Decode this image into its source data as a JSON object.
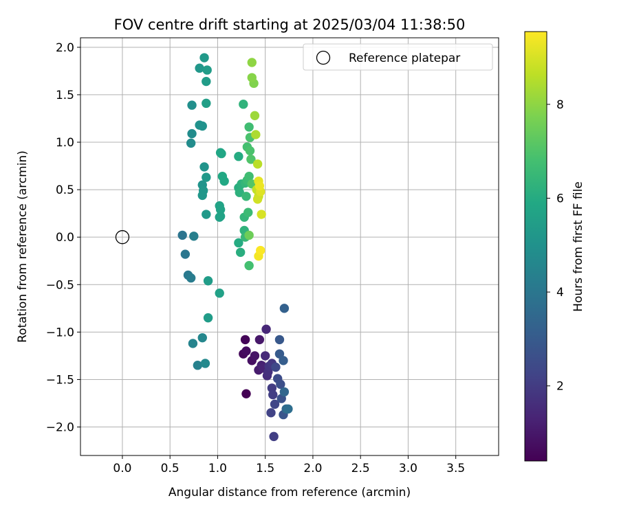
{
  "chart_data": {
    "type": "scatter",
    "title": "FOV centre drift starting at 2025/03/04 11:38:50",
    "xlabel": "Angular distance from reference (arcmin)",
    "ylabel": "Rotation from reference (arcmin)",
    "xlim": [
      -0.44,
      3.95
    ],
    "ylim": [
      -2.3,
      2.1
    ],
    "xticks": [
      0.0,
      0.5,
      1.0,
      1.5,
      2.0,
      2.5,
      3.0,
      3.5
    ],
    "xtick_labels": [
      "0.0",
      "0.5",
      "1.0",
      "1.5",
      "2.0",
      "2.5",
      "3.0",
      "3.5"
    ],
    "yticks": [
      2.0,
      1.5,
      1.0,
      0.5,
      0.0,
      -0.5,
      -1.0,
      -1.5,
      -2.0
    ],
    "ytick_labels": [
      "2.0",
      "1.5",
      "1.0",
      "0.5",
      "0.0",
      "−0.5",
      "−1.0",
      "−1.5",
      "−2.0"
    ],
    "grid": true,
    "legend": {
      "position": "top-right",
      "entries": [
        {
          "label": "Reference platepar",
          "marker": "open-circle",
          "color": "#000000"
        }
      ]
    },
    "reference_point": {
      "x": 0.0,
      "y": 0.0
    },
    "colorbar": {
      "label": "Hours from first FF file",
      "colormap": "viridis",
      "range": [
        0.4,
        9.55
      ],
      "ticks": [
        2,
        4,
        6,
        8
      ],
      "tick_labels": [
        "2",
        "4",
        "6",
        "8"
      ]
    },
    "series": [
      {
        "values": [
          {
            "x": 1.3,
            "y": -1.65,
            "c": 0.4
          },
          {
            "x": 1.29,
            "y": -1.08,
            "c": 0.5
          },
          {
            "x": 1.27,
            "y": -1.23,
            "c": 0.6
          },
          {
            "x": 1.3,
            "y": -1.2,
            "c": 0.7
          },
          {
            "x": 1.36,
            "y": -1.3,
            "c": 0.8
          },
          {
            "x": 1.39,
            "y": -1.25,
            "c": 0.9
          },
          {
            "x": 1.44,
            "y": -1.08,
            "c": 1.0
          },
          {
            "x": 1.43,
            "y": -1.4,
            "c": 1.1
          },
          {
            "x": 1.46,
            "y": -1.35,
            "c": 1.2
          },
          {
            "x": 1.48,
            "y": -1.38,
            "c": 1.3
          },
          {
            "x": 1.51,
            "y": -0.97,
            "c": 1.4
          },
          {
            "x": 1.5,
            "y": -1.25,
            "c": 1.5
          },
          {
            "x": 1.52,
            "y": -1.46,
            "c": 1.6
          },
          {
            "x": 1.53,
            "y": -1.42,
            "c": 1.7
          },
          {
            "x": 1.54,
            "y": -1.36,
            "c": 1.8
          },
          {
            "x": 1.57,
            "y": -1.33,
            "c": 1.9
          },
          {
            "x": 1.57,
            "y": -1.59,
            "c": 2.0
          },
          {
            "x": 1.58,
            "y": -1.66,
            "c": 2.1
          },
          {
            "x": 1.59,
            "y": -2.1,
            "c": 2.1
          },
          {
            "x": 1.56,
            "y": -1.85,
            "c": 2.2
          },
          {
            "x": 1.6,
            "y": -1.76,
            "c": 2.3
          },
          {
            "x": 1.61,
            "y": -1.37,
            "c": 2.4
          },
          {
            "x": 1.63,
            "y": -1.49,
            "c": 2.5
          },
          {
            "x": 1.66,
            "y": -1.55,
            "c": 2.6
          },
          {
            "x": 1.67,
            "y": -1.7,
            "c": 2.7
          },
          {
            "x": 1.69,
            "y": -1.87,
            "c": 2.8
          },
          {
            "x": 1.65,
            "y": -1.08,
            "c": 2.9
          },
          {
            "x": 1.65,
            "y": -1.23,
            "c": 3.0
          },
          {
            "x": 1.69,
            "y": -1.3,
            "c": 3.1
          },
          {
            "x": 1.7,
            "y": -0.75,
            "c": 3.2
          },
          {
            "x": 1.7,
            "y": -1.63,
            "c": 3.4
          },
          {
            "x": 1.72,
            "y": -1.81,
            "c": 3.5
          },
          {
            "x": 1.74,
            "y": -1.81,
            "c": 3.7
          },
          {
            "x": 0.63,
            "y": 0.02,
            "c": 3.9
          },
          {
            "x": 0.66,
            "y": -0.18,
            "c": 4.0
          },
          {
            "x": 0.69,
            "y": -0.4,
            "c": 4.1
          },
          {
            "x": 0.72,
            "y": -0.43,
            "c": 4.2
          },
          {
            "x": 0.75,
            "y": 0.01,
            "c": 4.3
          },
          {
            "x": 0.79,
            "y": -1.35,
            "c": 4.4
          },
          {
            "x": 0.74,
            "y": -1.12,
            "c": 4.5
          },
          {
            "x": 0.84,
            "y": -1.06,
            "c": 4.6
          },
          {
            "x": 0.87,
            "y": -1.33,
            "c": 4.7
          },
          {
            "x": 0.72,
            "y": 0.99,
            "c": 4.8
          },
          {
            "x": 0.73,
            "y": 1.09,
            "c": 4.8
          },
          {
            "x": 0.73,
            "y": 1.39,
            "c": 4.9
          },
          {
            "x": 0.81,
            "y": 1.18,
            "c": 5.0
          },
          {
            "x": 0.84,
            "y": 1.17,
            "c": 5.0
          },
          {
            "x": 0.86,
            "y": 0.74,
            "c": 5.1
          },
          {
            "x": 0.84,
            "y": 0.55,
            "c": 5.1
          },
          {
            "x": 0.85,
            "y": 0.49,
            "c": 5.2
          },
          {
            "x": 0.84,
            "y": 0.44,
            "c": 5.2
          },
          {
            "x": 0.88,
            "y": 0.63,
            "c": 5.3
          },
          {
            "x": 0.88,
            "y": 0.24,
            "c": 5.3
          },
          {
            "x": 0.9,
            "y": -0.46,
            "c": 5.4
          },
          {
            "x": 0.9,
            "y": -0.85,
            "c": 5.4
          },
          {
            "x": 0.81,
            "y": 1.78,
            "c": 5.2
          },
          {
            "x": 0.86,
            "y": 1.89,
            "c": 5.3
          },
          {
            "x": 0.89,
            "y": 1.76,
            "c": 5.4
          },
          {
            "x": 0.88,
            "y": 1.64,
            "c": 5.4
          },
          {
            "x": 0.88,
            "y": 1.41,
            "c": 5.5
          },
          {
            "x": 1.02,
            "y": -0.59,
            "c": 5.6
          },
          {
            "x": 1.02,
            "y": 0.21,
            "c": 5.6
          },
          {
            "x": 1.03,
            "y": 0.22,
            "c": 5.7
          },
          {
            "x": 1.02,
            "y": 0.33,
            "c": 5.7
          },
          {
            "x": 1.03,
            "y": 0.29,
            "c": 5.7
          },
          {
            "x": 1.03,
            "y": 0.89,
            "c": 5.8
          },
          {
            "x": 1.04,
            "y": 0.88,
            "c": 5.8
          },
          {
            "x": 1.05,
            "y": 0.64,
            "c": 5.9
          },
          {
            "x": 1.07,
            "y": 0.59,
            "c": 5.9
          },
          {
            "x": 1.22,
            "y": 0.85,
            "c": 6.0
          },
          {
            "x": 1.22,
            "y": -0.06,
            "c": 6.0
          },
          {
            "x": 1.24,
            "y": -0.16,
            "c": 6.1
          },
          {
            "x": 1.22,
            "y": 0.52,
            "c": 6.1
          },
          {
            "x": 1.23,
            "y": 0.47,
            "c": 6.2
          },
          {
            "x": 1.25,
            "y": 0.56,
            "c": 6.2
          },
          {
            "x": 1.27,
            "y": 1.4,
            "c": 6.3
          },
          {
            "x": 1.28,
            "y": 0.07,
            "c": 6.3
          },
          {
            "x": 1.29,
            "y": 0.57,
            "c": 6.4
          },
          {
            "x": 1.28,
            "y": 0.21,
            "c": 6.4
          },
          {
            "x": 1.29,
            "y": 0.0,
            "c": 6.5
          },
          {
            "x": 1.3,
            "y": 0.43,
            "c": 6.5
          },
          {
            "x": 1.31,
            "y": 0.6,
            "c": 6.6
          },
          {
            "x": 1.32,
            "y": 0.26,
            "c": 6.6
          },
          {
            "x": 1.33,
            "y": 0.64,
            "c": 6.7
          },
          {
            "x": 1.33,
            "y": 1.16,
            "c": 6.7
          },
          {
            "x": 1.31,
            "y": 0.95,
            "c": 6.8
          },
          {
            "x": 1.33,
            "y": -0.3,
            "c": 6.8
          },
          {
            "x": 1.34,
            "y": 0.91,
            "c": 6.9
          },
          {
            "x": 1.34,
            "y": 1.05,
            "c": 6.9
          },
          {
            "x": 1.35,
            "y": 0.82,
            "c": 7.0
          },
          {
            "x": 1.36,
            "y": 0.56,
            "c": 7.1
          },
          {
            "x": 1.33,
            "y": 0.02,
            "c": 7.5
          },
          {
            "x": 1.38,
            "y": 1.62,
            "c": 7.8
          },
          {
            "x": 1.36,
            "y": 1.68,
            "c": 7.9
          },
          {
            "x": 1.36,
            "y": 1.84,
            "c": 8.0
          },
          {
            "x": 1.39,
            "y": 1.28,
            "c": 8.2
          },
          {
            "x": 1.4,
            "y": 1.08,
            "c": 8.4
          },
          {
            "x": 1.42,
            "y": 0.77,
            "c": 8.6
          },
          {
            "x": 1.41,
            "y": 0.5,
            "c": 8.7
          },
          {
            "x": 1.43,
            "y": 0.43,
            "c": 8.8
          },
          {
            "x": 1.42,
            "y": 0.4,
            "c": 8.9
          },
          {
            "x": 1.46,
            "y": 0.24,
            "c": 9.0
          },
          {
            "x": 1.45,
            "y": 0.48,
            "c": 9.1
          },
          {
            "x": 1.43,
            "y": 0.59,
            "c": 9.2
          },
          {
            "x": 1.44,
            "y": 0.54,
            "c": 9.3
          },
          {
            "x": 1.43,
            "y": -0.2,
            "c": 9.4
          },
          {
            "x": 1.45,
            "y": -0.14,
            "c": 9.5
          }
        ]
      }
    ]
  }
}
